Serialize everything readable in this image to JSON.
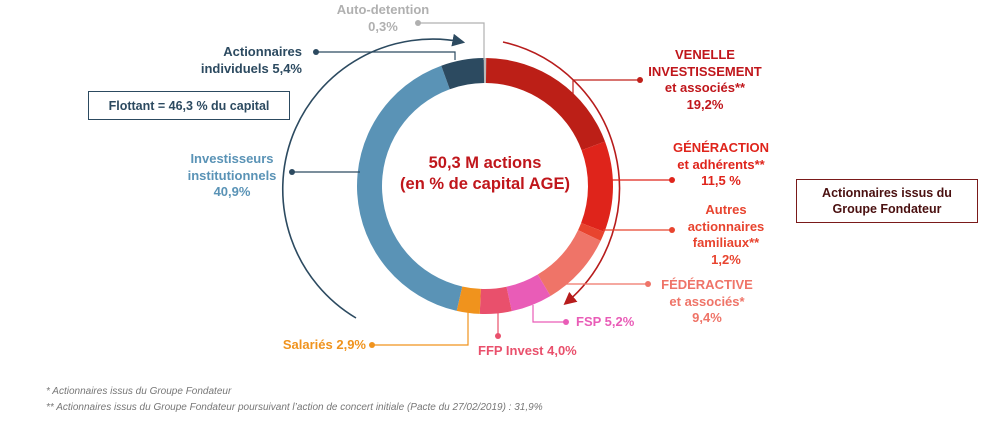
{
  "chart_data": {
    "type": "pie",
    "variant": "donut",
    "center_title": [
      "50,3 M actions",
      "(en % de capital AGE)"
    ],
    "slices": [
      {
        "name": "Auto-detention",
        "value": 0.3,
        "label": "0,3%",
        "color": "#b8b8b8"
      },
      {
        "name": "VENELLE INVESTISSEMENT et associés**",
        "value": 19.2,
        "label": "19,2%",
        "color": "#bc1f17"
      },
      {
        "name": "GÉNÉRACTION et adhérents**",
        "value": 11.5,
        "label": "11,5 %",
        "color": "#df241b"
      },
      {
        "name": "Autres actionnaires familiaux**",
        "value": 1.2,
        "label": "1,2%",
        "color": "#e8442f"
      },
      {
        "name": "FÉDÉRACTIVE et associés*",
        "value": 9.4,
        "label": "9,4%",
        "color": "#ef7468"
      },
      {
        "name": "FSP",
        "value": 5.2,
        "label": "5,2%",
        "color": "#e95cb7"
      },
      {
        "name": "FFP Invest",
        "value": 4.0,
        "label": "4,0%",
        "color": "#e9506c"
      },
      {
        "name": "Salariés",
        "value": 2.9,
        "label": "2,9%",
        "color": "#f0931d"
      },
      {
        "name": "Investisseurs institutionnels",
        "value": 40.9,
        "label": "40,9%",
        "color": "#5a93b6"
      },
      {
        "name": "Actionnaires individuels",
        "value": 5.4,
        "label": "5,4%",
        "color": "#2c4a60"
      }
    ]
  },
  "labels": {
    "auto": {
      "line1": "Auto-detention",
      "line2": "0,3%"
    },
    "individuels": {
      "line1": "Actionnaires",
      "line2": "individuels  5,4%"
    },
    "institutionnels": {
      "line1": "Investisseurs",
      "line2": "institutionnels",
      "line3": "40,9%"
    },
    "venelle": {
      "line1": "VENELLE",
      "line2": "INVESTISSEMENT",
      "line3": "et associés**",
      "line4": "19,2%"
    },
    "generaction": {
      "line1": "GÉNÉRACTION",
      "line2": "et adhérents**",
      "line3": "11,5 %"
    },
    "autres": {
      "line1": "Autres",
      "line2": "actionnaires",
      "line3": "familiaux**",
      "line4": "1,2%"
    },
    "federactive": {
      "line1": "FÉDÉRACTIVE",
      "line2": "et associés*",
      "line3": "9,4%"
    },
    "fsp": "FSP 5,2%",
    "ffp": "FFP Invest 4,0%",
    "salaries": "Salariés 2,9%"
  },
  "boxes": {
    "flottant": "Flottant  = 46,3 % du capital",
    "fondateur": [
      "Actionnaires issus du",
      "Groupe Fondateur"
    ]
  },
  "footnotes": [
    "*  Actionnaires issus du Groupe Fondateur",
    "** Actionnaires issus du Groupe Fondateur poursuivant l’action de concert initiale (Pacte du 27/02/2019)  : 31,9%"
  ],
  "colors": {
    "flottant": "#2c4a60",
    "fondateur": "#b71c1c"
  }
}
